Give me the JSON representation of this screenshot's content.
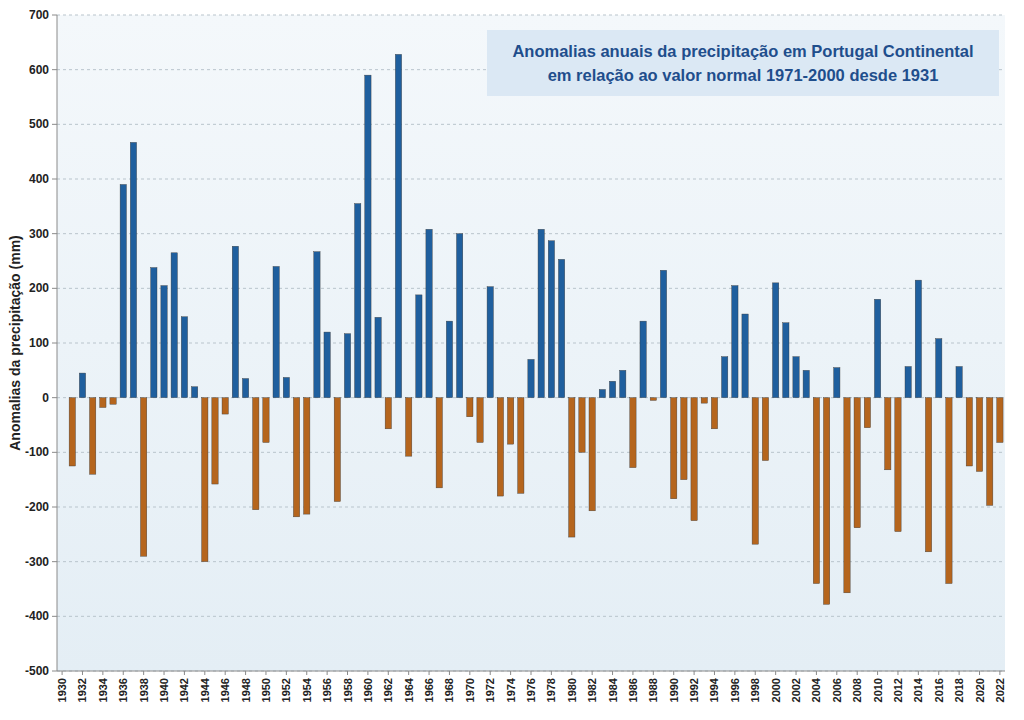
{
  "chart_data": {
    "type": "bar",
    "title": "Anomalias anuais da precipitação em Portugal Continental\nem relação ao valor normal 1971-2000 desde 1931",
    "y_label": "Anomalias da precipitação (mm)",
    "x": [
      1931,
      1932,
      1933,
      1934,
      1935,
      1936,
      1937,
      1938,
      1939,
      1940,
      1941,
      1942,
      1943,
      1944,
      1945,
      1946,
      1947,
      1948,
      1949,
      1950,
      1951,
      1952,
      1953,
      1954,
      1955,
      1956,
      1957,
      1958,
      1959,
      1960,
      1961,
      1962,
      1963,
      1964,
      1965,
      1966,
      1967,
      1968,
      1969,
      1970,
      1971,
      1972,
      1973,
      1974,
      1975,
      1976,
      1977,
      1978,
      1979,
      1980,
      1981,
      1982,
      1983,
      1984,
      1985,
      1986,
      1987,
      1988,
      1989,
      1990,
      1991,
      1992,
      1993,
      1994,
      1995,
      1996,
      1997,
      1998,
      1999,
      2000,
      2001,
      2002,
      2003,
      2004,
      2005,
      2006,
      2007,
      2008,
      2009,
      2010,
      2011,
      2012,
      2013,
      2014,
      2015,
      2016,
      2017,
      2018,
      2019,
      2020,
      2021,
      2022
    ],
    "values": [
      -125,
      45,
      -140,
      -18,
      -12,
      390,
      467,
      -290,
      238,
      205,
      265,
      148,
      20,
      -300,
      -158,
      -30,
      277,
      35,
      -205,
      -82,
      240,
      37,
      -218,
      -213,
      267,
      120,
      -190,
      117,
      355,
      590,
      147,
      -57,
      628,
      -107,
      188,
      308,
      -165,
      140,
      300,
      -35,
      -82,
      203,
      -180,
      -85,
      -175,
      70,
      308,
      287,
      253,
      -255,
      -100,
      -207,
      15,
      30,
      50,
      -128,
      140,
      -5,
      233,
      -185,
      -150,
      -225,
      -10,
      -57,
      75,
      205,
      153,
      -268,
      -115,
      210,
      137,
      75,
      50,
      -340,
      -378,
      55,
      -357,
      -238,
      -55,
      180,
      -132,
      -245,
      57,
      215,
      -282,
      108,
      -340,
      57,
      -125,
      -135,
      -197,
      -82
    ],
    "colors": [
      "#b5651d",
      "#1f5f9e",
      "#b5651d",
      "#b5651d",
      "#b5651d",
      "#1f5f9e",
      "#1f5f9e",
      "#b5651d",
      "#1f5f9e",
      "#1f5f9e",
      "#1f5f9e",
      "#1f5f9e",
      "#1f5f9e",
      "#b5651d",
      "#b5651d",
      "#b5651d",
      "#1f5f9e",
      "#1f5f9e",
      "#b5651d",
      "#b5651d",
      "#1f5f9e",
      "#1f5f9e",
      "#b5651d",
      "#b5651d",
      "#1f5f9e",
      "#1f5f9e",
      "#b5651d",
      "#1f5f9e",
      "#1f5f9e",
      "#1f5f9e",
      "#1f5f9e",
      "#b5651d",
      "#1f5f9e",
      "#b5651d",
      "#1f5f9e",
      "#1f5f9e",
      "#b5651d",
      "#1f5f9e",
      "#1f5f9e",
      "#b5651d",
      "#b5651d",
      "#1f5f9e",
      "#b5651d",
      "#b5651d",
      "#b5651d",
      "#1f5f9e",
      "#1f5f9e",
      "#1f5f9e",
      "#1f5f9e",
      "#b5651d",
      "#b5651d",
      "#b5651d",
      "#1f5f9e",
      "#1f5f9e",
      "#1f5f9e",
      "#b5651d",
      "#1f5f9e",
      "#b5651d",
      "#1f5f9e",
      "#b5651d",
      "#b5651d",
      "#b5651d",
      "#b5651d",
      "#b5651d",
      "#1f5f9e",
      "#1f5f9e",
      "#1f5f9e",
      "#b5651d",
      "#b5651d",
      "#1f5f9e",
      "#1f5f9e",
      "#1f5f9e",
      "#1f5f9e",
      "#b5651d",
      "#b5651d",
      "#1f5f9e",
      "#b5651d",
      "#b5651d",
      "#b5651d",
      "#1f5f9e",
      "#b5651d",
      "#b5651d",
      "#1f5f9e",
      "#1f5f9e",
      "#b5651d",
      "#1f5f9e",
      "#b5651d",
      "#1f5f9e",
      "#b5651d",
      "#b5651d",
      "#b5651d",
      "#b5651d"
    ],
    "xlim": [
      1929.5,
      2022.5
    ],
    "xticks": [
      1930,
      1932,
      1934,
      1936,
      1938,
      1940,
      1942,
      1944,
      1946,
      1948,
      1950,
      1952,
      1954,
      1956,
      1958,
      1960,
      1962,
      1964,
      1966,
      1968,
      1970,
      1972,
      1974,
      1976,
      1978,
      1980,
      1982,
      1984,
      1986,
      1988,
      1990,
      1992,
      1994,
      1996,
      1998,
      2000,
      2002,
      2004,
      2006,
      2008,
      2010,
      2012,
      2014,
      2016,
      2018,
      2020,
      2022
    ],
    "ylim": [
      -500,
      700
    ],
    "yticks": [
      -500,
      -400,
      -300,
      -200,
      -100,
      0,
      100,
      200,
      300,
      400,
      500,
      600,
      700
    ],
    "grid": true
  }
}
